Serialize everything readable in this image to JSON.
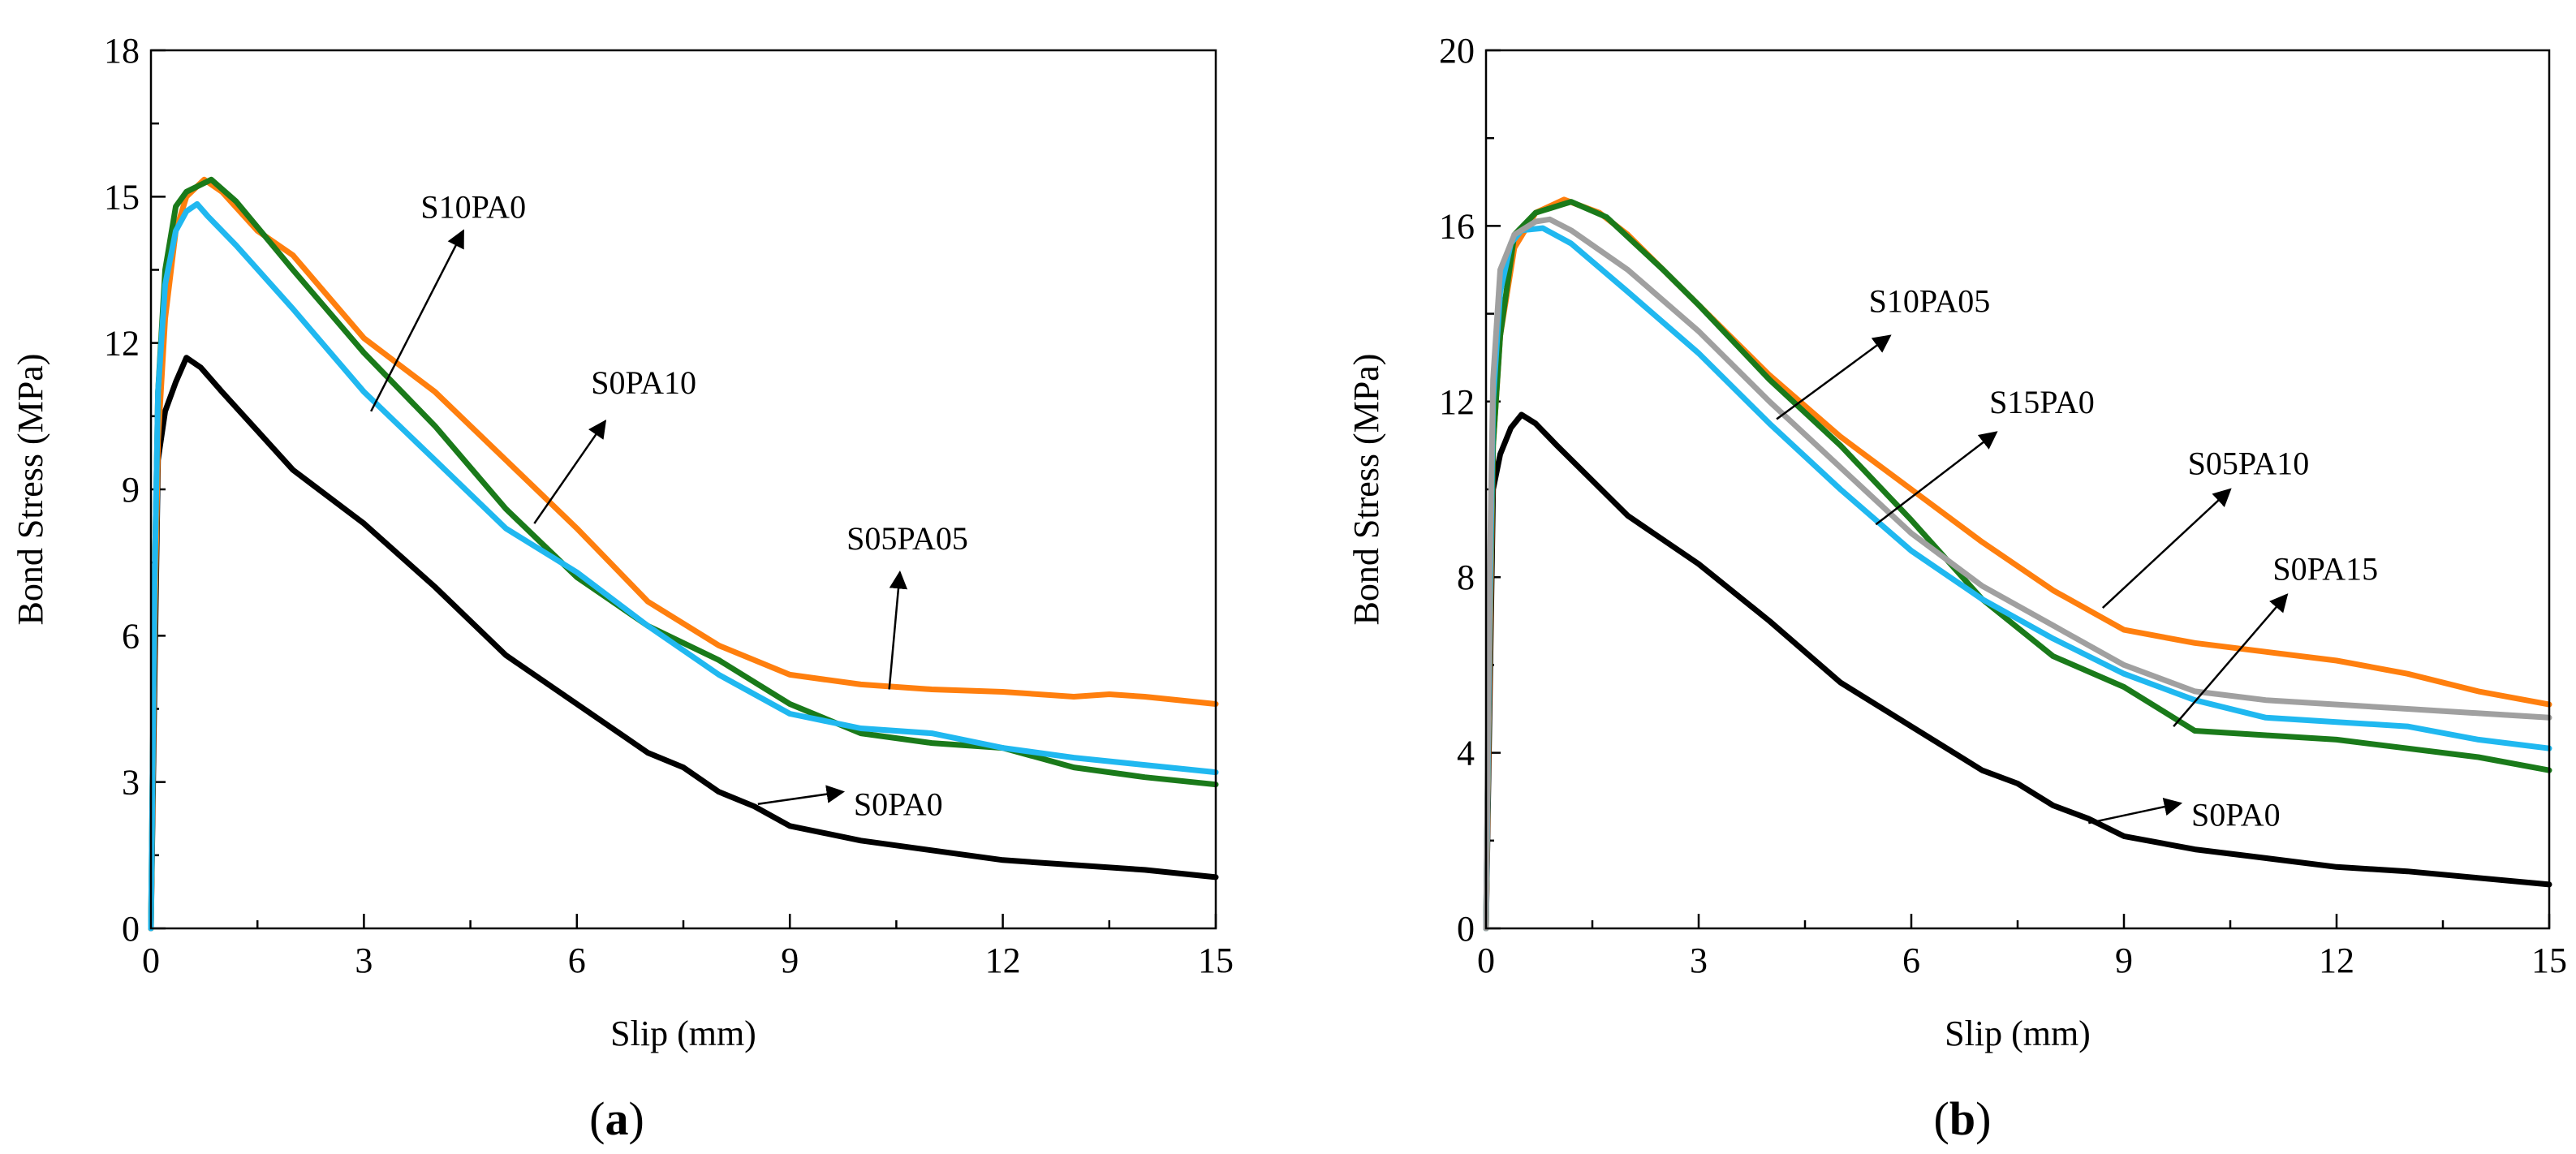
{
  "colors": {
    "black": "#000000",
    "orange": "#ff7f0e",
    "green": "#1a7a1a",
    "cyan": "#20b8f0",
    "gray": "#a0a0a0"
  },
  "chart_data": [
    {
      "type": "line",
      "panel_label": "a",
      "xlabel": "Slip (mm)",
      "ylabel": "Bond Stress (MPa)",
      "xlim": [
        0,
        15
      ],
      "ylim": [
        0,
        18
      ],
      "xticks": [
        0,
        3,
        6,
        9,
        12,
        15
      ],
      "yticks": [
        0,
        3,
        6,
        9,
        12,
        15,
        18
      ],
      "series": [
        {
          "name": "S0PA0",
          "color": "#000000",
          "points": [
            [
              0,
              0
            ],
            [
              0.05,
              5
            ],
            [
              0.1,
              9.6
            ],
            [
              0.2,
              10.6
            ],
            [
              0.35,
              11.2
            ],
            [
              0.5,
              11.7
            ],
            [
              0.7,
              11.5
            ],
            [
              1,
              11
            ],
            [
              1.5,
              10.2
            ],
            [
              2,
              9.4
            ],
            [
              3,
              8.3
            ],
            [
              4,
              7
            ],
            [
              5,
              5.6
            ],
            [
              6,
              4.6
            ],
            [
              7,
              3.6
            ],
            [
              7.5,
              3.3
            ],
            [
              8,
              2.8
            ],
            [
              8.5,
              2.5
            ],
            [
              9,
              2.1
            ],
            [
              10,
              1.8
            ],
            [
              11,
              1.6
            ],
            [
              12,
              1.4
            ],
            [
              13,
              1.3
            ],
            [
              14,
              1.2
            ],
            [
              15,
              1.05
            ]
          ]
        },
        {
          "name": "S05PA05",
          "color": "#ff7f0e",
          "points": [
            [
              0,
              0
            ],
            [
              0.05,
              6
            ],
            [
              0.1,
              10
            ],
            [
              0.2,
              12.5
            ],
            [
              0.35,
              14.3
            ],
            [
              0.5,
              15
            ],
            [
              0.75,
              15.35
            ],
            [
              1,
              15.1
            ],
            [
              1.5,
              14.3
            ],
            [
              2,
              13.8
            ],
            [
              3,
              12.1
            ],
            [
              4,
              11
            ],
            [
              5,
              9.6
            ],
            [
              6,
              8.2
            ],
            [
              7,
              6.7
            ],
            [
              8,
              5.8
            ],
            [
              9,
              5.2
            ],
            [
              10,
              5
            ],
            [
              11,
              4.9
            ],
            [
              12,
              4.85
            ],
            [
              13,
              4.75
            ],
            [
              13.5,
              4.8
            ],
            [
              14,
              4.75
            ],
            [
              15,
              4.6
            ]
          ]
        },
        {
          "name": "S0PA10",
          "color": "#1a7a1a",
          "points": [
            [
              0,
              0
            ],
            [
              0.05,
              7
            ],
            [
              0.1,
              11
            ],
            [
              0.2,
              13.5
            ],
            [
              0.35,
              14.8
            ],
            [
              0.5,
              15.1
            ],
            [
              0.85,
              15.35
            ],
            [
              1.2,
              14.9
            ],
            [
              2,
              13.5
            ],
            [
              3,
              11.8
            ],
            [
              4,
              10.3
            ],
            [
              5,
              8.6
            ],
            [
              6,
              7.2
            ],
            [
              7,
              6.2
            ],
            [
              8,
              5.5
            ],
            [
              9,
              4.6
            ],
            [
              10,
              4
            ],
            [
              11,
              3.8
            ],
            [
              12,
              3.7
            ],
            [
              13,
              3.3
            ],
            [
              14,
              3.1
            ],
            [
              15,
              2.95
            ]
          ]
        },
        {
          "name": "S10PA0",
          "color": "#20b8f0",
          "points": [
            [
              0,
              0
            ],
            [
              0.05,
              7
            ],
            [
              0.1,
              11
            ],
            [
              0.2,
              13.2
            ],
            [
              0.35,
              14.3
            ],
            [
              0.5,
              14.7
            ],
            [
              0.65,
              14.85
            ],
            [
              0.8,
              14.6
            ],
            [
              1.2,
              14
            ],
            [
              2,
              12.7
            ],
            [
              3,
              11
            ],
            [
              4,
              9.6
            ],
            [
              5,
              8.2
            ],
            [
              6,
              7.3
            ],
            [
              7,
              6.2
            ],
            [
              8,
              5.2
            ],
            [
              9,
              4.4
            ],
            [
              10,
              4.1
            ],
            [
              11,
              4
            ],
            [
              12,
              3.7
            ],
            [
              13,
              3.5
            ],
            [
              14,
              3.35
            ],
            [
              15,
              3.2
            ]
          ]
        }
      ],
      "annotations": [
        {
          "label": "S10PA0",
          "from": [
            3.1,
            10.6
          ],
          "to": [
            4.4,
            14.3
          ],
          "text_at": [
            3.8,
            14.8
          ]
        },
        {
          "label": "S0PA10",
          "from": [
            5.4,
            8.3
          ],
          "to": [
            6.4,
            10.4
          ],
          "text_at": [
            6.2,
            11.2
          ]
        },
        {
          "label": "S05PA05",
          "from": [
            10.4,
            4.9
          ],
          "to": [
            10.55,
            7.3
          ],
          "text_at": [
            9.8,
            8
          ]
        },
        {
          "label": "S0PA0",
          "from": [
            8.55,
            2.55
          ],
          "to": [
            9.75,
            2.8
          ],
          "text_at": [
            9.9,
            2.55
          ]
        }
      ]
    },
    {
      "type": "line",
      "panel_label": "b",
      "xlabel": "Slip (mm)",
      "ylabel": "Bond Stress (MPa)",
      "xlim": [
        0,
        15
      ],
      "ylim": [
        0,
        20
      ],
      "xticks": [
        0,
        3,
        6,
        9,
        12,
        15
      ],
      "yticks": [
        0,
        4,
        8,
        12,
        16,
        20
      ],
      "series": [
        {
          "name": "S0PA0",
          "color": "#000000",
          "points": [
            [
              0,
              0
            ],
            [
              0.05,
              5
            ],
            [
              0.1,
              10
            ],
            [
              0.2,
              10.8
            ],
            [
              0.35,
              11.4
            ],
            [
              0.5,
              11.7
            ],
            [
              0.7,
              11.5
            ],
            [
              1,
              11
            ],
            [
              1.5,
              10.2
            ],
            [
              2,
              9.4
            ],
            [
              3,
              8.3
            ],
            [
              4,
              7
            ],
            [
              5,
              5.6
            ],
            [
              6,
              4.6
            ],
            [
              7,
              3.6
            ],
            [
              7.5,
              3.3
            ],
            [
              8,
              2.8
            ],
            [
              8.5,
              2.5
            ],
            [
              9,
              2.1
            ],
            [
              10,
              1.8
            ],
            [
              11,
              1.6
            ],
            [
              12,
              1.4
            ],
            [
              13,
              1.3
            ],
            [
              14,
              1.15
            ],
            [
              15,
              1
            ]
          ]
        },
        {
          "name": "S05PA10",
          "color": "#ff7f0e",
          "points": [
            [
              0,
              0
            ],
            [
              0.05,
              6
            ],
            [
              0.1,
              11
            ],
            [
              0.2,
              13.5
            ],
            [
              0.4,
              15.5
            ],
            [
              0.7,
              16.3
            ],
            [
              1.1,
              16.6
            ],
            [
              1.6,
              16.3
            ],
            [
              2,
              15.8
            ],
            [
              3,
              14.2
            ],
            [
              4,
              12.6
            ],
            [
              5,
              11.2
            ],
            [
              6,
              10
            ],
            [
              7,
              8.8
            ],
            [
              8,
              7.7
            ],
            [
              9,
              6.8
            ],
            [
              10,
              6.5
            ],
            [
              11,
              6.3
            ],
            [
              12,
              6.1
            ],
            [
              13,
              5.8
            ],
            [
              14,
              5.4
            ],
            [
              15,
              5.1
            ]
          ]
        },
        {
          "name": "S10PA05",
          "color": "#1a7a1a",
          "points": [
            [
              0,
              0
            ],
            [
              0.05,
              7
            ],
            [
              0.1,
              11
            ],
            [
              0.2,
              13.5
            ],
            [
              0.4,
              15.8
            ],
            [
              0.7,
              16.3
            ],
            [
              1.2,
              16.55
            ],
            [
              1.7,
              16.2
            ],
            [
              2.5,
              15
            ],
            [
              3,
              14.2
            ],
            [
              4,
              12.5
            ],
            [
              5,
              11
            ],
            [
              6,
              9.3
            ],
            [
              7,
              7.5
            ],
            [
              8,
              6.2
            ],
            [
              9,
              5.5
            ],
            [
              10,
              4.5
            ],
            [
              11,
              4.4
            ],
            [
              12,
              4.3
            ],
            [
              13,
              4.1
            ],
            [
              14,
              3.9
            ],
            [
              15,
              3.6
            ]
          ]
        },
        {
          "name": "S15PA0",
          "color": "#20b8f0",
          "points": [
            [
              0,
              0
            ],
            [
              0.05,
              7
            ],
            [
              0.1,
              12
            ],
            [
              0.2,
              14.5
            ],
            [
              0.35,
              15.6
            ],
            [
              0.5,
              15.9
            ],
            [
              0.8,
              15.95
            ],
            [
              1.2,
              15.6
            ],
            [
              2,
              14.5
            ],
            [
              3,
              13.1
            ],
            [
              4,
              11.5
            ],
            [
              5,
              10
            ],
            [
              6,
              8.6
            ],
            [
              7,
              7.5
            ],
            [
              8,
              6.6
            ],
            [
              9,
              5.8
            ],
            [
              10,
              5.2
            ],
            [
              11,
              4.8
            ],
            [
              12,
              4.7
            ],
            [
              13,
              4.6
            ],
            [
              14,
              4.3
            ],
            [
              15,
              4.1
            ]
          ]
        },
        {
          "name": "S0PA15",
          "color": "#a0a0a0",
          "points": [
            [
              0,
              0
            ],
            [
              0.05,
              8
            ],
            [
              0.1,
              12.5
            ],
            [
              0.2,
              15
            ],
            [
              0.4,
              15.8
            ],
            [
              0.7,
              16.1
            ],
            [
              0.9,
              16.15
            ],
            [
              1.2,
              15.9
            ],
            [
              2,
              15
            ],
            [
              3,
              13.6
            ],
            [
              4,
              12
            ],
            [
              5,
              10.5
            ],
            [
              6,
              9
            ],
            [
              7,
              7.8
            ],
            [
              8,
              6.9
            ],
            [
              9,
              6
            ],
            [
              10,
              5.4
            ],
            [
              11,
              5.2
            ],
            [
              12,
              5.1
            ],
            [
              13,
              5
            ],
            [
              14,
              4.9
            ],
            [
              15,
              4.8
            ]
          ]
        }
      ],
      "annotations": [
        {
          "label": "S10PA05",
          "from": [
            4.1,
            11.6
          ],
          "to": [
            5.7,
            13.5
          ],
          "text_at": [
            5.4,
            14.3
          ]
        },
        {
          "label": "S15PA0",
          "from": [
            5.5,
            9.2
          ],
          "to": [
            7.2,
            11.3
          ],
          "text_at": [
            7.1,
            12
          ]
        },
        {
          "label": "S05PA10",
          "from": [
            8.7,
            7.3
          ],
          "to": [
            10.5,
            10
          ],
          "text_at": [
            9.9,
            10.6
          ]
        },
        {
          "label": "S0PA15",
          "from": [
            9.7,
            4.6
          ],
          "to": [
            11.3,
            7.6
          ],
          "text_at": [
            11.1,
            8.2
          ]
        },
        {
          "label": "S0PA0",
          "from": [
            8.5,
            2.4
          ],
          "to": [
            9.8,
            2.85
          ],
          "text_at": [
            9.95,
            2.6
          ]
        }
      ]
    }
  ]
}
